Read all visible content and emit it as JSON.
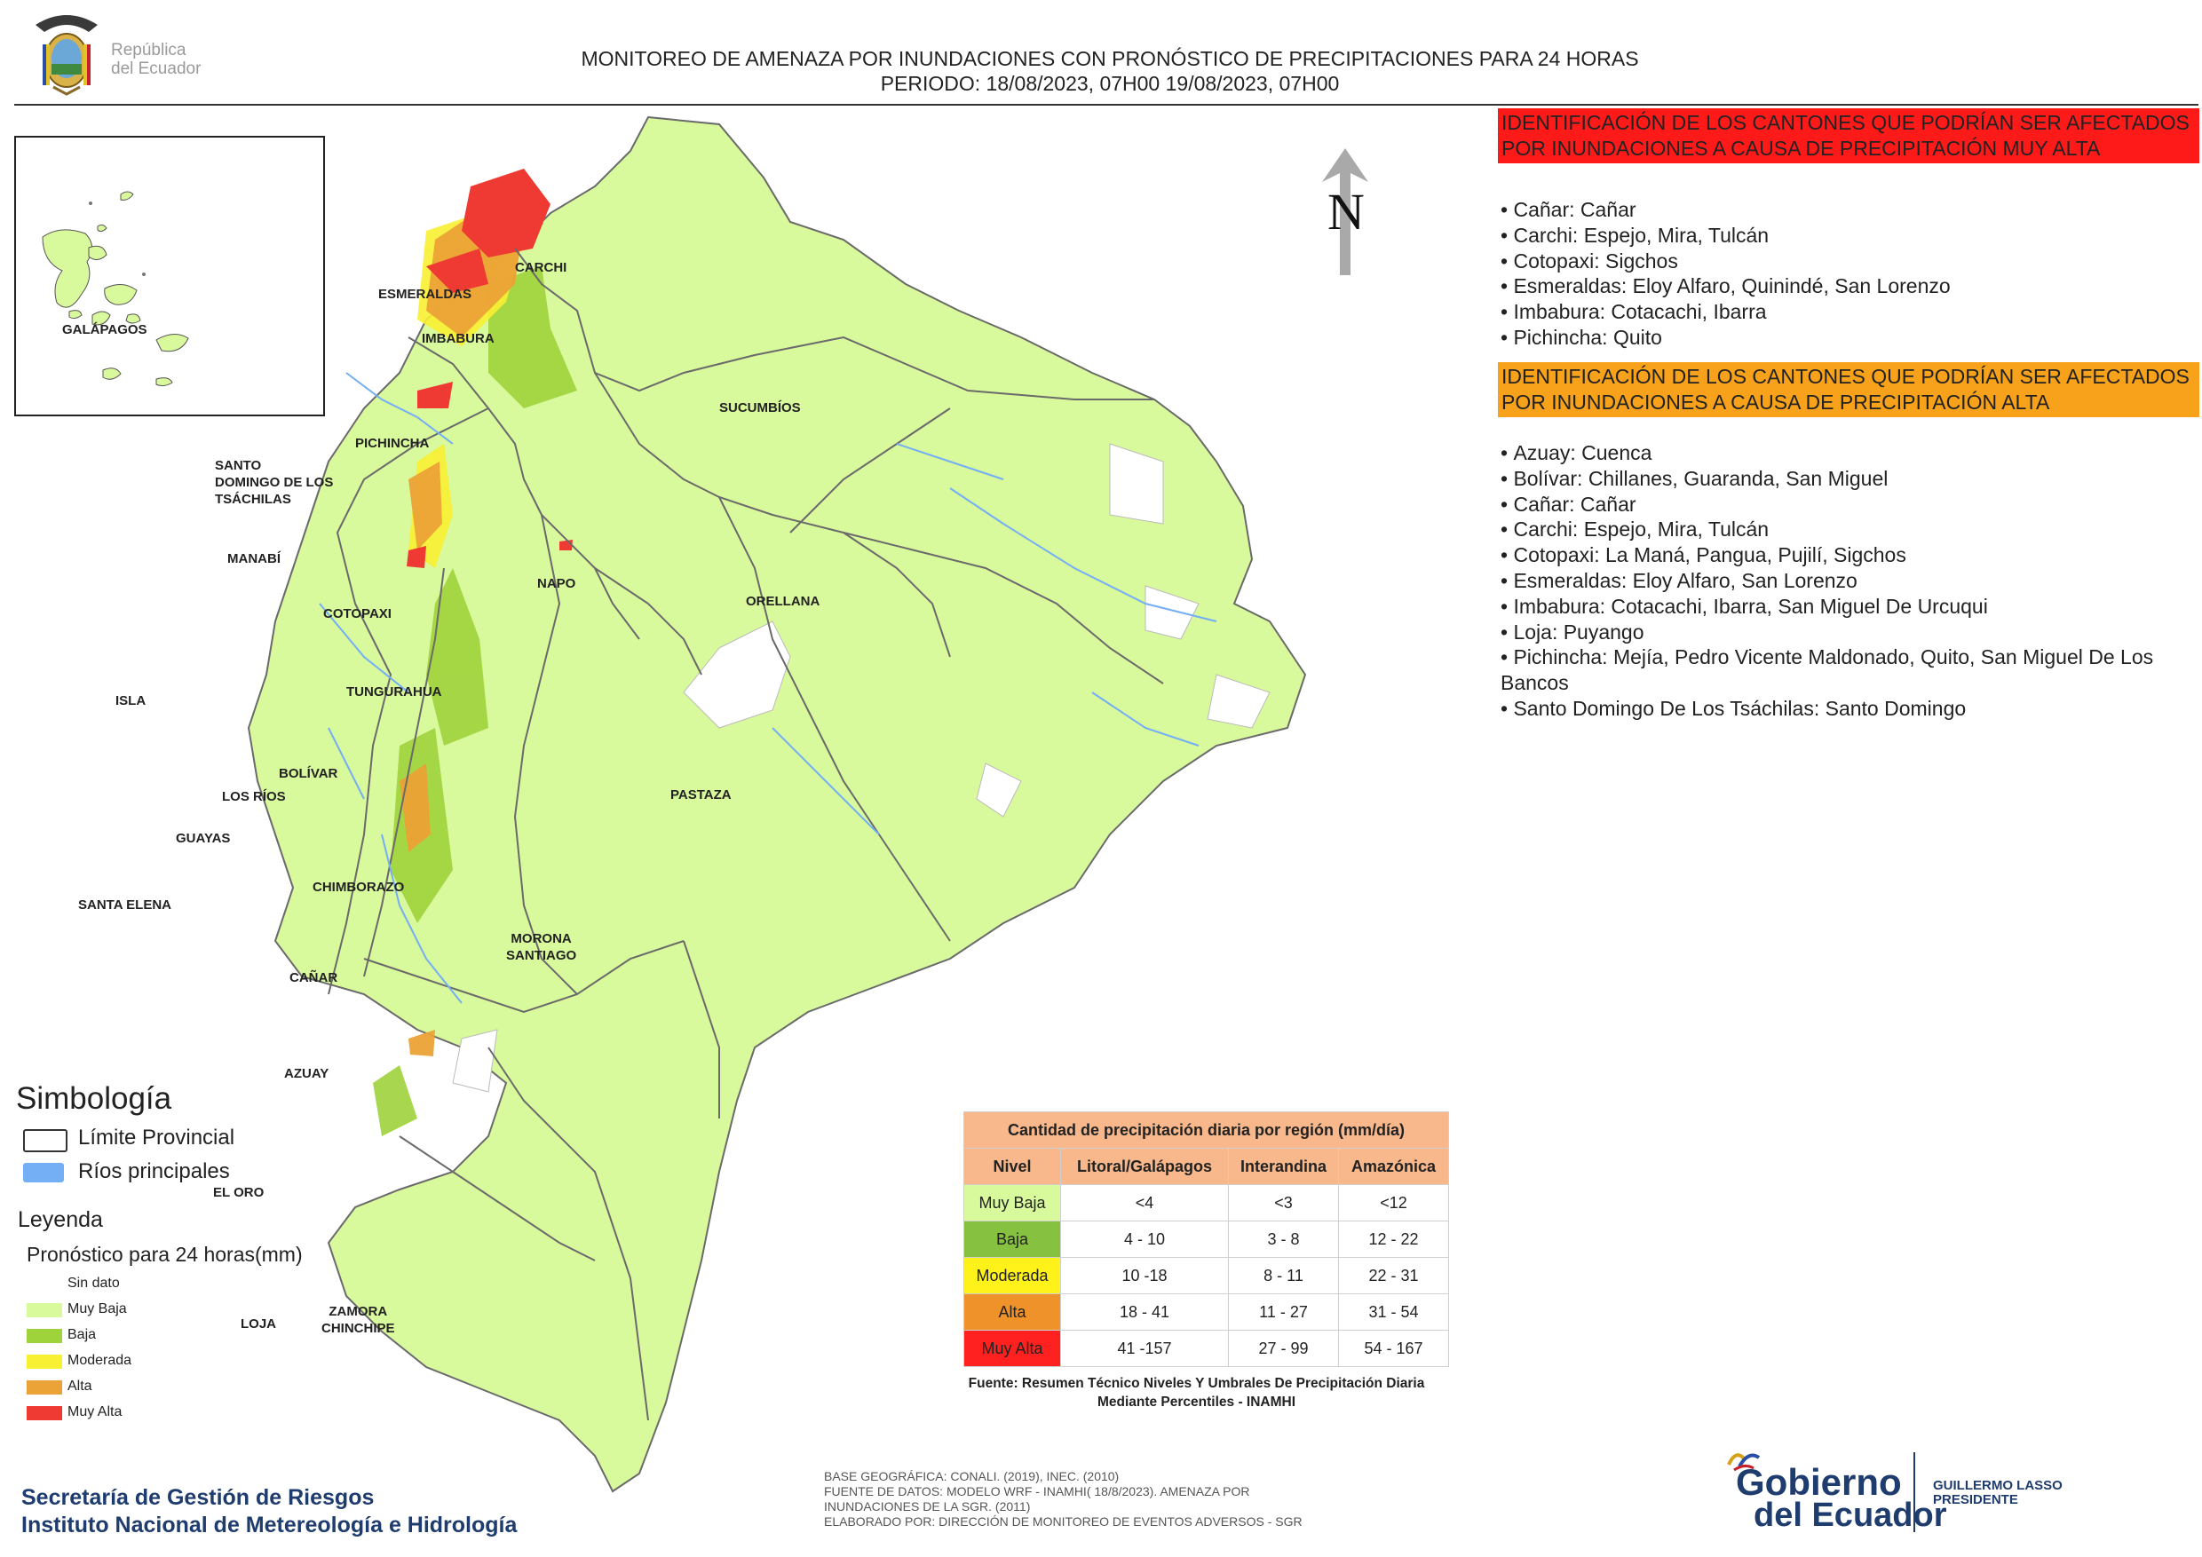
{
  "header": {
    "logo_text": "República\ndel Ecuador",
    "title_line1": "MONITOREO DE AMENAZA POR INUNDACIONES  CON PRONÓSTICO DE  PRECIPITACIONES PARA 24 HORAS",
    "title_line2": "PERIODO: 18/08/2023, 07H00 19/08/2023, 07H00"
  },
  "inset": {
    "label": "GALÁPAGOS"
  },
  "north_arrow": {
    "letter": "N"
  },
  "provinces": [
    {
      "id": "carchi",
      "label": "CARCHI"
    },
    {
      "id": "esmeraldas",
      "label": "ESMERALDAS"
    },
    {
      "id": "imbabura",
      "label": "IMBABURA"
    },
    {
      "id": "sucumbios",
      "label": "SUCUMBÍOS"
    },
    {
      "id": "pichincha",
      "label": "PICHINCHA"
    },
    {
      "id": "santo-domingo",
      "label": "SANTO\nDOMINGO DE LOS\nTSÁCHILAS"
    },
    {
      "id": "manabi",
      "label": "MANABÍ"
    },
    {
      "id": "napo",
      "label": "NAPO"
    },
    {
      "id": "orellana",
      "label": "ORELLANA"
    },
    {
      "id": "cotopaxi",
      "label": "COTOPAXI"
    },
    {
      "id": "isla",
      "label": "ISLA"
    },
    {
      "id": "tungurahua",
      "label": "TUNGURAHUA"
    },
    {
      "id": "bolivar",
      "label": "BOLÍVAR"
    },
    {
      "id": "los-rios",
      "label": "LOS RÍOS"
    },
    {
      "id": "pastaza",
      "label": "PASTAZA"
    },
    {
      "id": "guayas",
      "label": "GUAYAS"
    },
    {
      "id": "chimborazo",
      "label": "CHIMBORAZO"
    },
    {
      "id": "santa-elena",
      "label": "SANTA ELENA"
    },
    {
      "id": "morona-santiago",
      "label": "MORONA\nSANTIAGO"
    },
    {
      "id": "canar",
      "label": "CAÑAR"
    },
    {
      "id": "azuay",
      "label": "AZUAY"
    },
    {
      "id": "el-oro",
      "label": "EL ORO"
    },
    {
      "id": "loja",
      "label": "LOJA"
    },
    {
      "id": "zamora-chinchipe",
      "label": "ZAMORA\nCHINCHIPE"
    }
  ],
  "alerts": {
    "muy_alta": {
      "heading": "IDENTIFICACIÓN DE LOS CANTONES QUE PODRÍAN SER AFECTADOS POR INUNDACIONES  A CAUSA DE PRECIPITACIÓN MUY ALTA",
      "color": "#ff1a1a",
      "items": [
        "Cañar: Cañar",
        "Carchi: Espejo, Mira, Tulcán",
        "Cotopaxi: Sigchos",
        "Esmeraldas: Eloy Alfaro, Quinindé, San Lorenzo",
        "Imbabura: Cotacachi, Ibarra",
        "Pichincha: Quito"
      ]
    },
    "alta": {
      "heading": "IDENTIFICACIÓN DE LOS CANTONES QUE  PODRÍAN SER AFECTADOS POR INUNDACIONES  A CAUSA DE PRECIPITACIÓN ALTA",
      "color": "#f7a21a",
      "items": [
        "Azuay: Cuenca",
        "Bolívar: Chillanes, Guaranda, San Miguel",
        "Cañar: Cañar",
        "Carchi: Espejo, Mira, Tulcán",
        "Cotopaxi: La Maná, Pangua, Pujilí, Sigchos",
        "Esmeraldas: Eloy Alfaro, San Lorenzo",
        "Imbabura: Cotacachi, Ibarra, San Miguel De Urcuqui",
        "Loja: Puyango",
        "Pichincha: Mejía, Pedro Vicente Maldonado, Quito, San Miguel De Los Bancos",
        "Santo Domingo De Los Tsáchilas: Santo Domingo"
      ]
    }
  },
  "simbologia": {
    "title": "Simbología",
    "items": [
      {
        "label": "Límite Provincial",
        "color": "#ffffff"
      },
      {
        "label": "Ríos principales",
        "color": "#74aef5"
      }
    ]
  },
  "leyenda": {
    "title": "Leyenda",
    "subtitle": "Pronóstico para 24 horas(mm)",
    "items": [
      {
        "label": "Sin dato",
        "color": "#ffffff"
      },
      {
        "label": "Muy Baja",
        "color": "#d9f99d"
      },
      {
        "label": "Baja",
        "color": "#9fd33c"
      },
      {
        "label": "Moderada",
        "color": "#f8f032"
      },
      {
        "label": "Alta",
        "color": "#eba236"
      },
      {
        "label": "Muy Alta",
        "color": "#ef3a34"
      }
    ]
  },
  "table": {
    "title": "Cantidad de precipitación diaria por región (mm/día)",
    "headers": [
      "Nivel",
      "Litoral/Galápagos",
      "Interandina",
      "Amazónica"
    ],
    "rows": [
      {
        "nivel": "Muy Baja",
        "color": "#d9f99d",
        "litoral": "<4",
        "interandina": "<3",
        "amazonica": "<12"
      },
      {
        "nivel": "Baja",
        "color": "#86c13f",
        "litoral": "4 - 10",
        "interandina": "3 - 8",
        "amazonica": "12 - 22"
      },
      {
        "nivel": "Moderada",
        "color": "#fff21a",
        "litoral": "10 -18",
        "interandina": "8 - 11",
        "amazonica": "22 - 31"
      },
      {
        "nivel": "Alta",
        "color": "#f0922a",
        "litoral": "18 - 41",
        "interandina": "11 - 27",
        "amazonica": "31 - 54"
      },
      {
        "nivel": "Muy Alta",
        "color": "#ff2020",
        "litoral": "41 -157",
        "interandina": "27 - 99",
        "amazonica": "54 - 167"
      }
    ],
    "source": "Fuente: Resumen Técnico Niveles Y Umbrales De Precipitación Diaria Mediante Percentiles - INAMHI"
  },
  "footer": {
    "org_line1": "Secretaría de Gestión de Riesgos",
    "org_line2": "Instituto Nacional de Metereología e Hidrología",
    "notes": [
      "BASE GEOGRÁFICA: CONALI. (2019), INEC. (2010)",
      "FUENTE DE DATOS: MODELO WRF - INAMHI( 18/8/2023).  AMENAZA POR",
      "INUNDACIONES DE LA SGR. (2011)",
      "ELABORADO POR: DIRECCIÓN DE MONITOREO DE EVENTOS ADVERSOS - SGR"
    ],
    "gov_logo_line1": "Gobierno",
    "gov_logo_line2": "del Ecuador",
    "president_line1": "GUILLERMO LASSO",
    "president_line2": "PRESIDENTE"
  }
}
